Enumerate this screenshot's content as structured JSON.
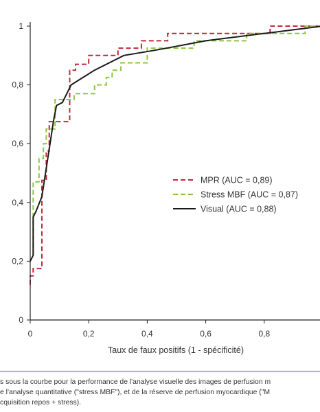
{
  "chart_data": {
    "type": "line",
    "xlabel": "Taux de faux positifs (1 - spécificité)",
    "ylabel": "",
    "xlim": [
      0,
      1
    ],
    "ylim": [
      0,
      1
    ],
    "x_ticks": [
      "0",
      "0,2",
      "0,4",
      "0,6",
      "0,8"
    ],
    "y_ticks": [
      "0",
      "0,2",
      "0,4",
      "0,6",
      "0,8",
      "1"
    ],
    "grid": false,
    "legend_position": "center-right",
    "series": [
      {
        "name": "MPR (AUC = 0,89)",
        "color": "#c0283a",
        "style": "dashed",
        "points": [
          [
            0,
            0.12
          ],
          [
            0,
            0.15
          ],
          [
            0.01,
            0.15
          ],
          [
            0.01,
            0.175
          ],
          [
            0.04,
            0.175
          ],
          [
            0.04,
            0.475
          ],
          [
            0.055,
            0.475
          ],
          [
            0.055,
            0.575
          ],
          [
            0.065,
            0.575
          ],
          [
            0.065,
            0.675
          ],
          [
            0.135,
            0.675
          ],
          [
            0.135,
            0.85
          ],
          [
            0.155,
            0.85
          ],
          [
            0.155,
            0.87
          ],
          [
            0.2,
            0.87
          ],
          [
            0.2,
            0.9
          ],
          [
            0.3,
            0.9
          ],
          [
            0.3,
            0.925
          ],
          [
            0.38,
            0.925
          ],
          [
            0.38,
            0.95
          ],
          [
            0.47,
            0.95
          ],
          [
            0.47,
            0.975
          ],
          [
            0.82,
            0.975
          ],
          [
            0.82,
            1
          ],
          [
            1,
            1
          ]
        ]
      },
      {
        "name": "Stress MBF (AUC = 0,87)",
        "color": "#8dc63f",
        "style": "dashed",
        "points": [
          [
            0.01,
            0.22
          ],
          [
            0.01,
            0.47
          ],
          [
            0.03,
            0.47
          ],
          [
            0.03,
            0.55
          ],
          [
            0.045,
            0.55
          ],
          [
            0.045,
            0.6
          ],
          [
            0.055,
            0.6
          ],
          [
            0.055,
            0.65
          ],
          [
            0.085,
            0.65
          ],
          [
            0.085,
            0.75
          ],
          [
            0.15,
            0.75
          ],
          [
            0.15,
            0.77
          ],
          [
            0.22,
            0.77
          ],
          [
            0.22,
            0.8
          ],
          [
            0.26,
            0.8
          ],
          [
            0.26,
            0.825
          ],
          [
            0.28,
            0.825
          ],
          [
            0.28,
            0.85
          ],
          [
            0.31,
            0.85
          ],
          [
            0.31,
            0.875
          ],
          [
            0.4,
            0.875
          ],
          [
            0.4,
            0.925
          ],
          [
            0.56,
            0.925
          ],
          [
            0.56,
            0.95
          ],
          [
            0.74,
            0.95
          ],
          [
            0.74,
            0.975
          ],
          [
            0.94,
            0.975
          ],
          [
            0.94,
            1
          ],
          [
            1,
            1
          ]
        ]
      },
      {
        "name": "Visual (AUC = 0,88)",
        "color": "#1a1a1a",
        "style": "solid",
        "points": [
          [
            0,
            0.2
          ],
          [
            0.01,
            0.22
          ],
          [
            0.01,
            0.35
          ],
          [
            0.02,
            0.37
          ],
          [
            0.04,
            0.42
          ],
          [
            0.06,
            0.55
          ],
          [
            0.08,
            0.68
          ],
          [
            0.09,
            0.73
          ],
          [
            0.11,
            0.74
          ],
          [
            0.14,
            0.8
          ],
          [
            0.22,
            0.85
          ],
          [
            0.32,
            0.9
          ],
          [
            0.44,
            0.92
          ],
          [
            0.6,
            0.95
          ],
          [
            0.8,
            0.975
          ],
          [
            1,
            1
          ]
        ]
      }
    ]
  },
  "caption": {
    "line1": "s sous la courbe pour la performance de l'analyse visuelle des images de perfusion m",
    "line2": "e l'analyse quantitative (\"stress MBF\"), et de la réserve de perfusion myocardique (\"M",
    "line3": "cquisition repos + stress)."
  }
}
